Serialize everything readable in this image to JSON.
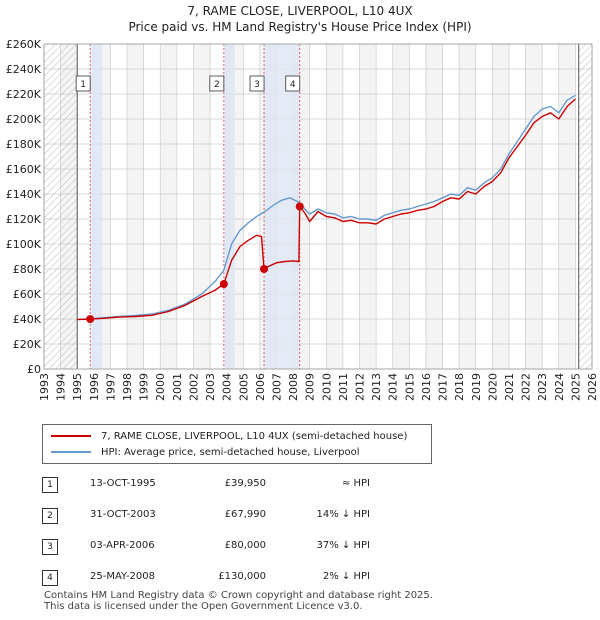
{
  "title": "7, RAME CLOSE, LIVERPOOL, L10 4UX",
  "subtitle": "Price paid vs. HM Land Registry's House Price Index (HPI)",
  "colors": {
    "property": "#cc0000",
    "hpi": "#6699cc",
    "shade": "#dde6f4",
    "grid": "#cccccc"
  },
  "legend": {
    "property_label": "7, RAME CLOSE, LIVERPOOL, L10 4UX (semi-detached house)",
    "hpi_label": "HPI: Average price, semi-detached house, Liverpool"
  },
  "transactions": [
    {
      "num": "1",
      "date": "13-OCT-1995",
      "price": "£39,950",
      "hpi": "≈ HPI"
    },
    {
      "num": "2",
      "date": "31-OCT-2003",
      "price": "£67,990",
      "hpi": "14% ↓ HPI"
    },
    {
      "num": "3",
      "date": "03-APR-2006",
      "price": "£80,000",
      "hpi": "37% ↓ HPI"
    },
    {
      "num": "4",
      "date": "25-MAY-2008",
      "price": "£130,000",
      "hpi": "2% ↓ HPI"
    }
  ],
  "footer": {
    "line1": "Contains HM Land Registry data © Crown copyright and database right 2025.",
    "line2": "This data is licensed under the Open Government Licence v3.0."
  },
  "chart_data": {
    "type": "line",
    "xlim": [
      1993,
      2026
    ],
    "ylim": [
      0,
      260000
    ],
    "y_ticks": [
      0,
      20000,
      40000,
      60000,
      80000,
      100000,
      120000,
      140000,
      160000,
      180000,
      200000,
      220000,
      240000,
      260000
    ],
    "y_tick_labels": [
      "£0",
      "£20K",
      "£40K",
      "£60K",
      "£80K",
      "£100K",
      "£120K",
      "£140K",
      "£160K",
      "£180K",
      "£200K",
      "£220K",
      "£240K",
      "£260K"
    ],
    "x_ticks": [
      "1993",
      "1994",
      "1995",
      "1996",
      "1997",
      "1998",
      "1999",
      "2000",
      "2001",
      "2002",
      "2003",
      "2004",
      "2005",
      "2006",
      "2007",
      "2008",
      "2009",
      "2010",
      "2011",
      "2012",
      "2013",
      "2014",
      "2015",
      "2016",
      "2017",
      "2018",
      "2019",
      "2020",
      "2021",
      "2022",
      "2023",
      "2024",
      "2025",
      "2026"
    ],
    "hatched_ranges": [
      [
        1993,
        1995.0
      ],
      [
        2025.2,
        2026
      ]
    ],
    "shaded_ranges": [
      [
        1995.78,
        1996.5
      ],
      [
        2003.83,
        2004.5
      ],
      [
        2006.25,
        2008.4
      ]
    ],
    "series": [
      {
        "name": "7, RAME CLOSE, LIVERPOOL, L10 4UX (semi-detached house)",
        "color": "#cc0000",
        "x": [
          1995.0,
          1995.78,
          1996.5,
          1997.5,
          1998.5,
          1999.5,
          2000.5,
          2001.5,
          2002.5,
          2003.3,
          2003.83,
          2004.3,
          2004.8,
          2005.3,
          2005.8,
          2006.1,
          2006.25,
          2006.5,
          2007.0,
          2007.5,
          2008.0,
          2008.35,
          2008.4,
          2008.7,
          2009.0,
          2009.5,
          2010.0,
          2010.5,
          2011.0,
          2011.5,
          2012.0,
          2012.5,
          2013.0,
          2013.5,
          2014.0,
          2014.5,
          2015.0,
          2015.5,
          2016.0,
          2016.5,
          2017.0,
          2017.5,
          2018.0,
          2018.5,
          2019.0,
          2019.5,
          2020.0,
          2020.5,
          2021.0,
          2021.5,
          2022.0,
          2022.5,
          2023.0,
          2023.5,
          2024.0,
          2024.5,
          2025.0
        ],
        "y": [
          39500,
          39950,
          40500,
          41500,
          42000,
          43000,
          46000,
          51000,
          58000,
          63000,
          67990,
          87000,
          98000,
          103000,
          107000,
          106000,
          80000,
          82000,
          85000,
          86000,
          86500,
          86000,
          130000,
          125000,
          118000,
          126000,
          122000,
          121000,
          118000,
          119000,
          117000,
          117000,
          116000,
          120000,
          122000,
          124000,
          125000,
          127000,
          128000,
          130000,
          134000,
          137000,
          136000,
          142000,
          140000,
          146000,
          150000,
          157000,
          169000,
          178000,
          187000,
          197000,
          202000,
          205000,
          200000,
          210000,
          216000
        ]
      },
      {
        "name": "HPI: Average price, semi-detached house, Liverpool",
        "color": "#6699cc",
        "x": [
          1995.0,
          1995.78,
          1996.5,
          1997.5,
          1998.5,
          1999.5,
          2000.5,
          2001.5,
          2002.5,
          2003.3,
          2003.83,
          2004.3,
          2004.8,
          2005.3,
          2005.8,
          2006.3,
          2006.8,
          2007.3,
          2007.8,
          2008.4,
          2008.7,
          2009.0,
          2009.5,
          2010.0,
          2010.5,
          2011.0,
          2011.5,
          2012.0,
          2012.5,
          2013.0,
          2013.5,
          2014.0,
          2014.5,
          2015.0,
          2015.5,
          2016.0,
          2016.5,
          2017.0,
          2017.5,
          2018.0,
          2018.5,
          2019.0,
          2019.5,
          2020.0,
          2020.5,
          2021.0,
          2021.5,
          2022.0,
          2022.5,
          2023.0,
          2023.5,
          2024.0,
          2024.5,
          2025.0
        ],
        "y": [
          39800,
          40200,
          41000,
          42000,
          42800,
          44000,
          47000,
          52000,
          60000,
          70000,
          79000,
          100000,
          111000,
          117000,
          122000,
          126000,
          131000,
          135000,
          137000,
          133000,
          128000,
          124000,
          128000,
          125000,
          124000,
          121000,
          122000,
          120000,
          120000,
          119000,
          123000,
          125000,
          127000,
          128000,
          130000,
          132000,
          134000,
          137000,
          140000,
          139000,
          145000,
          143000,
          149000,
          153000,
          160000,
          172000,
          182000,
          192000,
          202000,
          208000,
          210000,
          205000,
          215000,
          219000
        ]
      }
    ],
    "sale_points": [
      {
        "label": "1",
        "x": 1995.78,
        "y": 39950
      },
      {
        "label": "2",
        "x": 2003.83,
        "y": 67990
      },
      {
        "label": "3",
        "x": 2006.25,
        "y": 80000
      },
      {
        "label": "4",
        "x": 2008.4,
        "y": 130000
      }
    ]
  }
}
